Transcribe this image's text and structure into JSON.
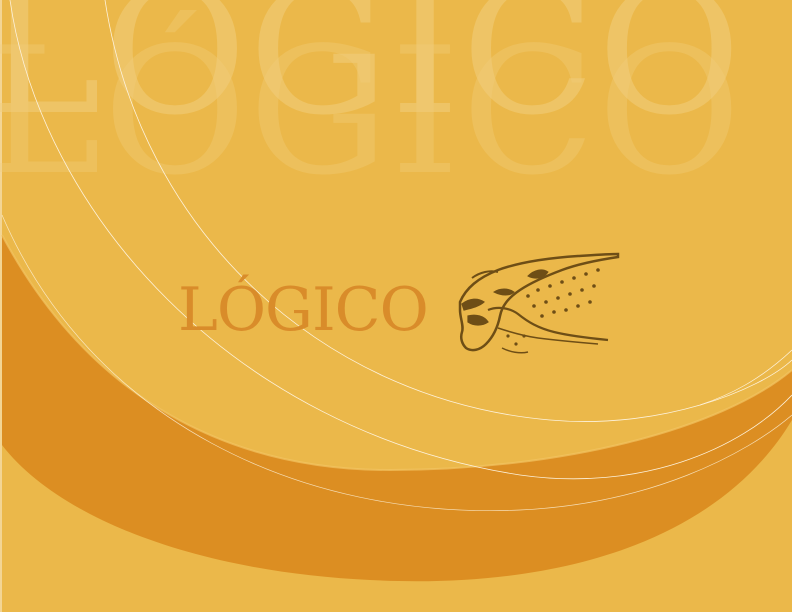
{
  "brand": {
    "wordmark": "LÓGICO",
    "watermark_line1": "LÓGICO",
    "watermark_line2": "LÓGICO",
    "mascot_icon": "cheetah-head-icon"
  },
  "colors": {
    "background": "#ebb84a",
    "swoosh": "#dc8e22",
    "wordmark": "#d98c2a",
    "watermark": "#f2cf7e",
    "mascot": "#6e4e16",
    "lines": "#fdf2dc"
  }
}
